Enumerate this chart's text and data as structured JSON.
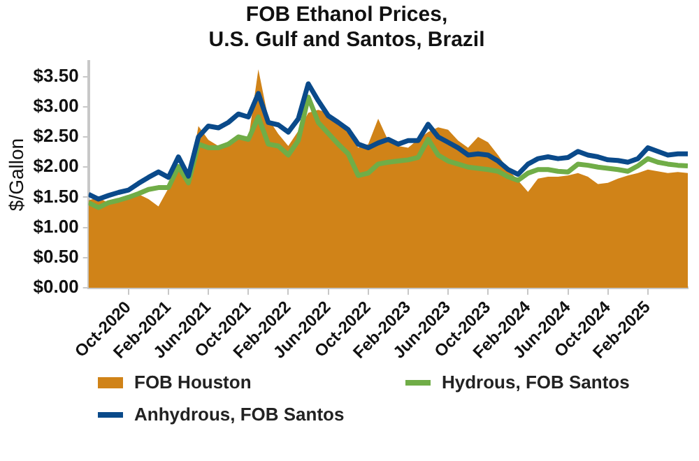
{
  "chart_data": {
    "type": "area",
    "title": [
      "FOB Ethanol Prices,",
      "U.S. Gulf and Santos, Brazil"
    ],
    "ylabel": "$/Gallon",
    "x": [
      "2020-06",
      "2020-07",
      "2020-08",
      "2020-09",
      "2020-10",
      "2020-11",
      "2020-12",
      "2021-01",
      "2021-02",
      "2021-03",
      "2021-04",
      "2021-05",
      "2021-06",
      "2021-07",
      "2021-08",
      "2021-09",
      "2021-10",
      "2021-11",
      "2021-12",
      "2022-01",
      "2022-02",
      "2022-03",
      "2022-04",
      "2022-05",
      "2022-06",
      "2022-07",
      "2022-08",
      "2022-09",
      "2022-10",
      "2022-11",
      "2022-12",
      "2023-01",
      "2023-02",
      "2023-03",
      "2023-04",
      "2023-05",
      "2023-06",
      "2023-07",
      "2023-08",
      "2023-09",
      "2023-10",
      "2023-11",
      "2023-12",
      "2024-01",
      "2024-02",
      "2024-03",
      "2024-04",
      "2024-05",
      "2024-06",
      "2024-07",
      "2024-08",
      "2024-09",
      "2024-10",
      "2024-11",
      "2024-12",
      "2025-01",
      "2025-02",
      "2025-03",
      "2025-04",
      "2025-05",
      "2025-06"
    ],
    "series": [
      {
        "name": "FOB Houston",
        "color": "#d08318",
        "values": [
          1.45,
          1.5,
          1.4,
          1.45,
          1.5,
          1.55,
          1.47,
          1.35,
          1.65,
          2.0,
          1.75,
          2.68,
          2.45,
          2.35,
          2.4,
          2.5,
          2.45,
          3.62,
          2.8,
          2.55,
          2.35,
          2.6,
          2.9,
          2.95,
          2.9,
          2.74,
          2.56,
          2.32,
          2.38,
          2.8,
          2.44,
          2.35,
          2.32,
          2.46,
          2.58,
          2.66,
          2.62,
          2.44,
          2.32,
          2.5,
          2.41,
          2.2,
          1.96,
          1.78,
          1.59,
          1.81,
          1.84,
          1.84,
          1.86,
          1.9,
          1.84,
          1.72,
          1.74,
          1.81,
          1.86,
          1.9,
          1.96,
          1.93,
          1.9,
          1.92,
          1.9
        ]
      },
      {
        "name": "Hydrous, FOB Santos",
        "type": "line",
        "color": "#70ad47",
        "values": [
          1.41,
          1.33,
          1.41,
          1.45,
          1.5,
          1.56,
          1.63,
          1.66,
          1.66,
          2.01,
          1.74,
          2.38,
          2.32,
          2.32,
          2.38,
          2.5,
          2.46,
          2.83,
          2.38,
          2.35,
          2.2,
          2.44,
          3.16,
          2.74,
          2.56,
          2.38,
          2.22,
          1.86,
          1.9,
          2.05,
          2.08,
          2.1,
          2.12,
          2.16,
          2.46,
          2.2,
          2.1,
          2.05,
          2.0,
          1.98,
          1.96,
          1.93,
          1.84,
          1.78,
          1.9,
          1.96,
          1.96,
          1.93,
          1.92,
          2.05,
          2.03,
          2.0,
          1.98,
          1.96,
          1.93,
          2.02,
          2.14,
          2.08,
          2.05,
          2.03,
          2.02
        ]
      },
      {
        "name": "Anhydrous, FOB Santos",
        "type": "line",
        "color": "#0a4a8a",
        "values": [
          1.55,
          1.47,
          1.53,
          1.58,
          1.62,
          1.73,
          1.83,
          1.92,
          1.83,
          2.17,
          1.85,
          2.5,
          2.68,
          2.65,
          2.74,
          2.88,
          2.83,
          3.22,
          2.74,
          2.7,
          2.58,
          2.8,
          3.38,
          3.1,
          2.85,
          2.74,
          2.62,
          2.38,
          2.32,
          2.4,
          2.46,
          2.38,
          2.44,
          2.44,
          2.71,
          2.5,
          2.41,
          2.32,
          2.2,
          2.22,
          2.2,
          2.1,
          1.96,
          1.88,
          2.05,
          2.14,
          2.17,
          2.14,
          2.16,
          2.26,
          2.2,
          2.17,
          2.12,
          2.11,
          2.08,
          2.14,
          2.32,
          2.26,
          2.2,
          2.22,
          2.22
        ]
      }
    ],
    "xlim": [
      "2020-06",
      "2025-06"
    ],
    "xticks": [
      {
        "value": "2020-10",
        "label": "Oct-2020"
      },
      {
        "value": "2021-02",
        "label": "Feb-2021"
      },
      {
        "value": "2021-06",
        "label": "Jun-2021"
      },
      {
        "value": "2021-10",
        "label": "Oct-2021"
      },
      {
        "value": "2022-02",
        "label": "Feb-2022"
      },
      {
        "value": "2022-06",
        "label": "Jun-2022"
      },
      {
        "value": "2022-10",
        "label": "Oct-2022"
      },
      {
        "value": "2023-02",
        "label": "Feb-2023"
      },
      {
        "value": "2023-06",
        "label": "Jun-2023"
      },
      {
        "value": "2023-10",
        "label": "Oct-2023"
      },
      {
        "value": "2024-02",
        "label": "Feb-2024"
      },
      {
        "value": "2024-06",
        "label": "Jun-2024"
      },
      {
        "value": "2024-10",
        "label": "Oct-2024"
      },
      {
        "value": "2025-02",
        "label": "Feb-2025"
      }
    ],
    "ylim": [
      0,
      3.75
    ],
    "yticks": [
      {
        "value": 0,
        "label": "$0.00"
      },
      {
        "value": 0.5,
        "label": "$0.50"
      },
      {
        "value": 1,
        "label": "$1.00"
      },
      {
        "value": 1.5,
        "label": "$1.50"
      },
      {
        "value": 2,
        "label": "$2.00"
      },
      {
        "value": 2.5,
        "label": "$2.50"
      },
      {
        "value": 3,
        "label": "$3.00"
      },
      {
        "value": 3.5,
        "label": "$3.50"
      }
    ],
    "grid": false,
    "legend": "bottom",
    "line_style": "solid",
    "marker": "none"
  }
}
